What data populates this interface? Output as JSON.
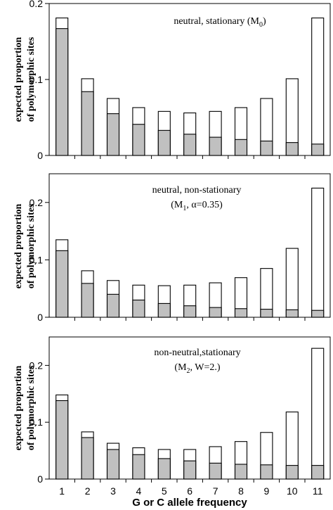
{
  "chart_data": [
    {
      "type": "bar",
      "stacked": "overlay",
      "annotation": {
        "line1": "neutral, stationary (M",
        "sub": "0",
        "close": ")"
      },
      "ylabel": [
        "expected proportion",
        "of polymorphic sites"
      ],
      "ylim": [
        0,
        0.2
      ],
      "yticks": [
        {
          "value": 0,
          "label": "0"
        },
        {
          "value": 0.1,
          "label": "0.1"
        },
        {
          "value": 0.2,
          "label": "0.2"
        }
      ],
      "categories": [
        "1",
        "2",
        "3",
        "4",
        "5",
        "6",
        "7",
        "8",
        "9",
        "10",
        "11"
      ],
      "series": [
        {
          "values": [
            0.181,
            0.101,
            0.075,
            0.063,
            0.058,
            0.056,
            0.058,
            0.063,
            0.075,
            0.101,
            0.181
          ]
        },
        {
          "values": [
            0.167,
            0.084,
            0.055,
            0.041,
            0.033,
            0.028,
            0.024,
            0.021,
            0.019,
            0.017,
            0.015
          ]
        }
      ]
    },
    {
      "type": "bar",
      "stacked": "overlay",
      "annotation": {
        "line1": "neutral, non-stationary",
        "line2": "(M",
        "sub": "1",
        "close": ", α=0.35)"
      },
      "ylabel": [
        "expected proportion",
        "of polymorphic sites"
      ],
      "ylim": [
        0,
        0.25
      ],
      "yticks": [
        {
          "value": 0,
          "label": "0"
        },
        {
          "value": 0.1,
          "label": "0.1"
        },
        {
          "value": 0.2,
          "label": "0.2"
        }
      ],
      "categories": [
        "1",
        "2",
        "3",
        "4",
        "5",
        "6",
        "7",
        "8",
        "9",
        "10",
        "11"
      ],
      "series": [
        {
          "values": [
            0.135,
            0.081,
            0.064,
            0.056,
            0.055,
            0.056,
            0.06,
            0.069,
            0.085,
            0.12,
            0.225
          ]
        },
        {
          "values": [
            0.116,
            0.059,
            0.04,
            0.03,
            0.024,
            0.02,
            0.017,
            0.015,
            0.014,
            0.013,
            0.012
          ]
        }
      ]
    },
    {
      "type": "bar",
      "stacked": "overlay",
      "annotation": {
        "line1": "non-neutral,stationary",
        "line2": "(M",
        "sub": "2",
        "close": ", W=2.)"
      },
      "ylabel": [
        "expected proportion",
        "of polymorphic sites"
      ],
      "xlabel": "G or C allele frequency",
      "ylim": [
        0,
        0.25
      ],
      "yticks": [
        {
          "value": 0,
          "label": "0"
        },
        {
          "value": 0.1,
          "label": "0.1"
        },
        {
          "value": 0.2,
          "label": "0.2"
        }
      ],
      "categories": [
        "1",
        "2",
        "3",
        "4",
        "5",
        "6",
        "7",
        "8",
        "9",
        "10",
        "11"
      ],
      "series": [
        {
          "values": [
            0.148,
            0.083,
            0.063,
            0.055,
            0.052,
            0.052,
            0.057,
            0.066,
            0.082,
            0.118,
            0.23
          ]
        },
        {
          "values": [
            0.138,
            0.073,
            0.052,
            0.043,
            0.036,
            0.032,
            0.028,
            0.026,
            0.025,
            0.024,
            0.024
          ]
        }
      ]
    }
  ]
}
